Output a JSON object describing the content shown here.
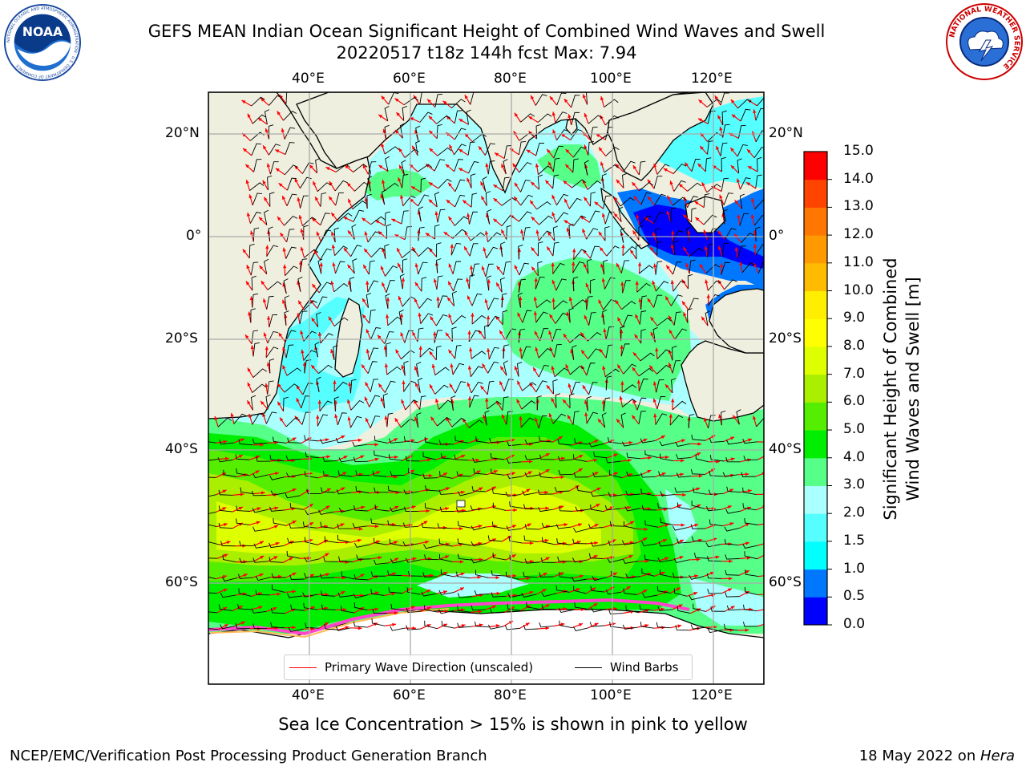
{
  "title": {
    "line1": "GEFS MEAN Indian Ocean Significant Height of Combined Wind Waves and Swell",
    "line2": "20220517 t18z 144h fcst   Max: 7.94"
  },
  "logos": {
    "noaa": {
      "text": "NOAA",
      "ring_text": "NATIONAL OCEANIC AND ATMOSPHERIC ADMINISTRATION · U.S. DEPARTMENT OF COMMERCE"
    },
    "nws": {
      "ring_text": "NATIONAL WEATHER SERVICE"
    }
  },
  "map": {
    "lon_labels": [
      "40°E",
      "60°E",
      "80°E",
      "100°E",
      "120°E"
    ],
    "lat_labels": [
      "20°N",
      "0°",
      "20°S",
      "40°S",
      "60°S"
    ],
    "lon_range": [
      20,
      130
    ],
    "lat_range": [
      -76,
      28
    ]
  },
  "colorbar": {
    "label_line1": "Significant Height of Combined",
    "label_line2": "Wind Waves and Swell [m]",
    "ticks": [
      "0.0",
      "0.5",
      "1.0",
      "1.5",
      "2.0",
      "3.0",
      "4.0",
      "5.0",
      "6.0",
      "7.0",
      "8.0",
      "9.0",
      "10.0",
      "11.0",
      "12.0",
      "13.0",
      "14.0",
      "15.0"
    ],
    "colors": [
      "#0000ff",
      "#0077ff",
      "#00ffff",
      "#55ffff",
      "#aaffff",
      "#55ff88",
      "#00ee00",
      "#55ee00",
      "#aaee00",
      "#ddff00",
      "#ffff00",
      "#ffee00",
      "#ffbb00",
      "#ff9900",
      "#ff7700",
      "#ff4400",
      "#ff0000"
    ]
  },
  "legend": {
    "wave_label": "Primary Wave Direction (unscaled)",
    "wave_color": "#ff0000",
    "wind_label": "Wind Barbs",
    "wind_color": "#000000"
  },
  "footnote": "Sea Ice Concentration > 15% is shown in pink to yellow",
  "credit_left": "NCEP/EMC/Verification Post Processing Product Generation Branch",
  "credit_right_text": "18 May 2022 on ",
  "credit_right_host": "Hera"
}
